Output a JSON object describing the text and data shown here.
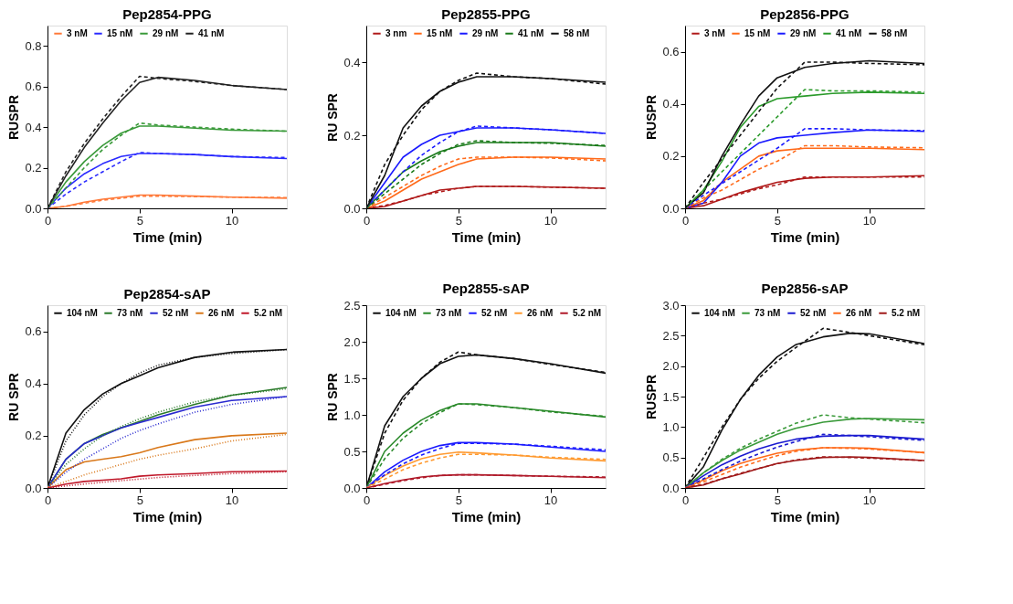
{
  "chart_data": [
    {
      "type": "line",
      "title": "Pep2854-PPG",
      "xlabel": "Time (min)",
      "ylabel": "RUSPR",
      "legend": "top",
      "x": [
        0,
        1,
        2,
        3,
        4,
        5,
        6,
        8,
        10,
        13
      ],
      "xlim": [
        0,
        13
      ],
      "xticks": [
        0,
        5,
        10
      ],
      "ylim": [
        0,
        0.9
      ],
      "yticks": [
        {
          "value": 0,
          "label": "0.0"
        },
        0.2,
        0.4,
        0.6,
        0.8
      ],
      "line_style": "solid",
      "series": [
        {
          "name": "3 nM",
          "color": "#ff7a3a",
          "values": [
            0,
            0.01,
            0.03,
            0.045,
            0.055,
            0.065,
            0.065,
            0.06,
            0.055,
            0.05
          ]
        },
        {
          "name": "15 nM",
          "color": "#2a2aff",
          "values": [
            0,
            0.1,
            0.17,
            0.22,
            0.255,
            0.27,
            0.27,
            0.265,
            0.255,
            0.245
          ]
        },
        {
          "name": "29 nM",
          "color": "#3a9a3a",
          "values": [
            0,
            0.13,
            0.23,
            0.31,
            0.37,
            0.405,
            0.405,
            0.395,
            0.385,
            0.38
          ]
        },
        {
          "name": "41 nM",
          "color": "#222222",
          "values": [
            0,
            0.16,
            0.3,
            0.42,
            0.53,
            0.62,
            0.645,
            0.63,
            0.605,
            0.585
          ]
        },
        {
          "color": "#ff7a3a",
          "line_style": "dashed",
          "values": [
            0,
            0.01,
            0.025,
            0.04,
            0.05,
            0.06,
            0.06,
            0.058,
            0.055,
            0.053
          ]
        },
        {
          "color": "#2a2aff",
          "line_style": "dashed",
          "values": [
            0,
            0.07,
            0.13,
            0.18,
            0.23,
            0.275,
            0.27,
            0.265,
            0.255,
            0.25
          ]
        },
        {
          "color": "#3a9a3a",
          "line_style": "dashed",
          "values": [
            0,
            0.1,
            0.2,
            0.29,
            0.36,
            0.42,
            0.41,
            0.4,
            0.39,
            0.38
          ]
        },
        {
          "color": "#222222",
          "line_style": "dashed",
          "values": [
            0,
            0.18,
            0.32,
            0.44,
            0.55,
            0.65,
            0.64,
            0.625,
            0.605,
            0.585
          ]
        }
      ]
    },
    {
      "type": "line",
      "title": "Pep2855-PPG",
      "xlabel": "Time (min)",
      "ylabel": "RU SPR",
      "legend": "top",
      "x": [
        0,
        1,
        2,
        3,
        4,
        5,
        6,
        8,
        10,
        13
      ],
      "xlim": [
        0,
        13
      ],
      "xticks": [
        0,
        5,
        10
      ],
      "ylim": [
        0,
        0.5
      ],
      "yticks": [
        {
          "value": 0,
          "label": "0.0"
        },
        0.2,
        0.4
      ],
      "line_style": "solid",
      "series": [
        {
          "name": "3 nm",
          "color": "#b01a1a",
          "values": [
            0,
            0.005,
            0.02,
            0.035,
            0.05,
            0.055,
            0.06,
            0.06,
            0.058,
            0.055
          ]
        },
        {
          "name": "15 nM",
          "color": "#ff6a1a",
          "values": [
            0,
            0.02,
            0.05,
            0.08,
            0.1,
            0.12,
            0.135,
            0.14,
            0.14,
            0.135
          ]
        },
        {
          "name": "29 nM",
          "color": "#1a1aff",
          "values": [
            0,
            0.07,
            0.14,
            0.175,
            0.2,
            0.21,
            0.22,
            0.22,
            0.215,
            0.205
          ]
        },
        {
          "name": "41 nM",
          "color": "#1a7a1a",
          "values": [
            0,
            0.05,
            0.1,
            0.13,
            0.155,
            0.17,
            0.18,
            0.18,
            0.18,
            0.17
          ]
        },
        {
          "name": "58 nM",
          "color": "#111111",
          "values": [
            0,
            0.09,
            0.22,
            0.28,
            0.32,
            0.345,
            0.36,
            0.36,
            0.355,
            0.345
          ]
        },
        {
          "color": "#b01a1a",
          "line_style": "dashed",
          "values": [
            0,
            0.008,
            0.02,
            0.035,
            0.045,
            0.055,
            0.06,
            0.06,
            0.058,
            0.055
          ]
        },
        {
          "color": "#ff6a1a",
          "line_style": "dashed",
          "values": [
            0,
            0.03,
            0.06,
            0.09,
            0.115,
            0.135,
            0.14,
            0.14,
            0.138,
            0.13
          ]
        },
        {
          "color": "#1a1aff",
          "line_style": "dashed",
          "values": [
            0,
            0.05,
            0.1,
            0.145,
            0.18,
            0.21,
            0.225,
            0.22,
            0.215,
            0.205
          ]
        },
        {
          "color": "#1a7a1a",
          "line_style": "dashed",
          "values": [
            0,
            0.04,
            0.08,
            0.12,
            0.15,
            0.175,
            0.185,
            0.18,
            0.178,
            0.172
          ]
        },
        {
          "color": "#111111",
          "line_style": "dashed",
          "values": [
            0,
            0.12,
            0.2,
            0.27,
            0.32,
            0.35,
            0.37,
            0.36,
            0.355,
            0.34
          ]
        }
      ]
    },
    {
      "type": "line",
      "title": "Pep2856-PPG",
      "xlabel": "Time (min)",
      "ylabel": "RUSPR",
      "legend": "top",
      "x": [
        0,
        1,
        2,
        3,
        4,
        5,
        6.5,
        8,
        10,
        13
      ],
      "xlim": [
        0,
        13
      ],
      "xticks": [
        0,
        5,
        10
      ],
      "ylim": [
        0,
        0.7
      ],
      "yticks": [
        {
          "value": 0,
          "label": "0.0"
        },
        0.2,
        0.4,
        0.6
      ],
      "line_style": "solid",
      "series": [
        {
          "name": "3 nM",
          "color": "#b01a1a",
          "values": [
            0,
            0.01,
            0.035,
            0.06,
            0.08,
            0.1,
            0.115,
            0.12,
            0.12,
            0.125
          ]
        },
        {
          "name": "15 nM",
          "color": "#ff6a1a",
          "values": [
            0,
            0.03,
            0.1,
            0.15,
            0.2,
            0.22,
            0.23,
            0.23,
            0.23,
            0.225
          ]
        },
        {
          "name": "29 nM",
          "color": "#1a1aff",
          "values": [
            0,
            0.02,
            0.1,
            0.2,
            0.25,
            0.27,
            0.28,
            0.29,
            0.3,
            0.295
          ]
        },
        {
          "name": "41 nM",
          "color": "#2a9a2a",
          "values": [
            0,
            0.07,
            0.18,
            0.31,
            0.39,
            0.42,
            0.43,
            0.44,
            0.445,
            0.44
          ]
        },
        {
          "name": "58 nM",
          "color": "#111111",
          "values": [
            0,
            0.06,
            0.2,
            0.32,
            0.43,
            0.5,
            0.54,
            0.555,
            0.565,
            0.555
          ]
        },
        {
          "color": "#b01a1a",
          "line_style": "dashed",
          "values": [
            0,
            0.02,
            0.035,
            0.055,
            0.075,
            0.09,
            0.12,
            0.12,
            0.12,
            0.12
          ]
        },
        {
          "color": "#ff6a1a",
          "line_style": "dashed",
          "values": [
            0,
            0.04,
            0.07,
            0.11,
            0.15,
            0.18,
            0.24,
            0.24,
            0.235,
            0.232
          ]
        },
        {
          "color": "#1a1aff",
          "line_style": "dashed",
          "values": [
            0,
            0.05,
            0.095,
            0.14,
            0.185,
            0.23,
            0.305,
            0.305,
            0.3,
            0.298
          ]
        },
        {
          "color": "#2a9a2a",
          "line_style": "dashed",
          "values": [
            0,
            0.07,
            0.14,
            0.21,
            0.28,
            0.35,
            0.455,
            0.45,
            0.45,
            0.445
          ]
        },
        {
          "color": "#111111",
          "line_style": "dashed",
          "values": [
            0,
            0.1,
            0.19,
            0.28,
            0.37,
            0.46,
            0.56,
            0.56,
            0.555,
            0.55
          ]
        }
      ]
    },
    {
      "type": "line",
      "title": "Pep2854-sAP",
      "xlabel": "Time (min)",
      "ylabel": "RU SPR",
      "legend": "top",
      "x": [
        0,
        1,
        2,
        3,
        4,
        5,
        6,
        8,
        10,
        13
      ],
      "xlim": [
        0,
        13
      ],
      "xticks": [
        0,
        5,
        10
      ],
      "ylim": [
        0,
        0.7
      ],
      "yticks": [
        {
          "value": 0,
          "label": "0.0"
        },
        0.2,
        0.4,
        0.6
      ],
      "line_style": "solid",
      "series": [
        {
          "name": "104 nM",
          "color": "#111111",
          "values": [
            0,
            0.21,
            0.3,
            0.36,
            0.4,
            0.43,
            0.46,
            0.5,
            0.52,
            0.53
          ]
        },
        {
          "name": "73 nM",
          "color": "#2a7a2a",
          "values": [
            0,
            0.11,
            0.17,
            0.205,
            0.23,
            0.255,
            0.28,
            0.32,
            0.355,
            0.385
          ]
        },
        {
          "name": "52 nM",
          "color": "#2a2ad0",
          "values": [
            0,
            0.11,
            0.17,
            0.2,
            0.23,
            0.25,
            0.27,
            0.31,
            0.335,
            0.35
          ]
        },
        {
          "name": "26 nM",
          "color": "#d9781a",
          "values": [
            0,
            0.07,
            0.1,
            0.11,
            0.12,
            0.135,
            0.155,
            0.185,
            0.2,
            0.21
          ]
        },
        {
          "name": "5.2 nM",
          "color": "#c0182a",
          "values": [
            0,
            0.015,
            0.025,
            0.03,
            0.035,
            0.045,
            0.05,
            0.055,
            0.062,
            0.065
          ]
        },
        {
          "color": "#111111",
          "line_style": "dotted",
          "values": [
            0,
            0.18,
            0.28,
            0.35,
            0.4,
            0.44,
            0.47,
            0.5,
            0.515,
            0.53
          ]
        },
        {
          "color": "#2a7a2a",
          "line_style": "dotted",
          "values": [
            0,
            0.09,
            0.15,
            0.2,
            0.235,
            0.265,
            0.29,
            0.33,
            0.355,
            0.38
          ]
        },
        {
          "color": "#2a2ad0",
          "line_style": "dotted",
          "values": [
            0,
            0.06,
            0.11,
            0.15,
            0.19,
            0.22,
            0.245,
            0.29,
            0.32,
            0.35
          ]
        },
        {
          "color": "#d9781a",
          "line_style": "dotted",
          "values": [
            0,
            0.025,
            0.05,
            0.07,
            0.09,
            0.11,
            0.125,
            0.15,
            0.18,
            0.205
          ]
        },
        {
          "color": "#c0182a",
          "line_style": "dotted",
          "values": [
            0,
            0.008,
            0.015,
            0.022,
            0.028,
            0.034,
            0.04,
            0.048,
            0.055,
            0.062
          ]
        }
      ]
    },
    {
      "type": "line",
      "title": "Pep2855-sAP",
      "xlabel": "Time (min)",
      "ylabel": "RU SPR",
      "legend": "top",
      "x": [
        0,
        1,
        2,
        3,
        4,
        5,
        6,
        8,
        10,
        13
      ],
      "xlim": [
        0,
        13
      ],
      "xticks": [
        0,
        5,
        10
      ],
      "ylim": [
        0,
        2.5
      ],
      "yticks": [
        {
          "value": 0,
          "label": "0.0"
        },
        0.5,
        {
          "value": 1,
          "label": "1.0"
        },
        1.5,
        {
          "value": 2,
          "label": "2.0"
        },
        2.5
      ],
      "line_style": "solid",
      "series": [
        {
          "name": "104 nM",
          "color": "#111111",
          "values": [
            0,
            0.85,
            1.25,
            1.5,
            1.7,
            1.8,
            1.82,
            1.77,
            1.7,
            1.57
          ]
        },
        {
          "name": "73 nM",
          "color": "#2a8a2a",
          "values": [
            0,
            0.5,
            0.75,
            0.93,
            1.06,
            1.15,
            1.15,
            1.1,
            1.05,
            0.97
          ]
        },
        {
          "name": "52 nM",
          "color": "#1a1aff",
          "values": [
            0,
            0.22,
            0.38,
            0.5,
            0.58,
            0.62,
            0.62,
            0.6,
            0.56,
            0.5
          ]
        },
        {
          "name": "26 nM",
          "color": "#ff9a30",
          "values": [
            0,
            0.17,
            0.3,
            0.4,
            0.46,
            0.49,
            0.48,
            0.45,
            0.41,
            0.37
          ]
        },
        {
          "name": "5.2 nM",
          "color": "#b01a2a",
          "values": [
            0,
            0.06,
            0.11,
            0.15,
            0.17,
            0.18,
            0.18,
            0.17,
            0.16,
            0.14
          ]
        },
        {
          "color": "#111111",
          "line_style": "dashed",
          "values": [
            0,
            0.75,
            1.2,
            1.5,
            1.72,
            1.86,
            1.82,
            1.77,
            1.69,
            1.58
          ]
        },
        {
          "color": "#2a8a2a",
          "line_style": "dashed",
          "values": [
            0,
            0.4,
            0.68,
            0.88,
            1.03,
            1.15,
            1.14,
            1.1,
            1.04,
            0.98
          ]
        },
        {
          "color": "#1a1aff",
          "line_style": "dashed",
          "values": [
            0,
            0.18,
            0.33,
            0.45,
            0.54,
            0.61,
            0.61,
            0.6,
            0.57,
            0.52
          ]
        },
        {
          "color": "#ff9a30",
          "line_style": "dashed",
          "values": [
            0,
            0.12,
            0.25,
            0.34,
            0.41,
            0.46,
            0.46,
            0.45,
            0.42,
            0.39
          ]
        },
        {
          "color": "#b01a2a",
          "line_style": "dashed",
          "values": [
            0,
            0.05,
            0.1,
            0.14,
            0.17,
            0.18,
            0.18,
            0.17,
            0.16,
            0.15
          ]
        }
      ]
    },
    {
      "type": "line",
      "title": "Pep2856-sAP",
      "xlabel": "Time (min)",
      "ylabel": "RUSPR",
      "legend": "top",
      "x": [
        0,
        1,
        2,
        3,
        4,
        5,
        6,
        7.5,
        9,
        10,
        13
      ],
      "xlim": [
        0,
        13
      ],
      "xticks": [
        0,
        5,
        10
      ],
      "ylim": [
        0,
        3
      ],
      "yticks": [
        {
          "value": 0,
          "label": "0.0"
        },
        0.5,
        {
          "value": 1,
          "label": "1.0"
        },
        1.5,
        {
          "value": 2,
          "label": "2.0"
        },
        2.5,
        {
          "value": 3,
          "label": "3.0"
        }
      ],
      "line_style": "solid",
      "series": [
        {
          "name": "104 nM",
          "color": "#111111",
          "values": [
            0,
            0.35,
            0.95,
            1.45,
            1.85,
            2.15,
            2.35,
            2.48,
            2.54,
            2.53,
            2.37
          ]
        },
        {
          "name": "73 nM",
          "color": "#3a9a3a",
          "values": [
            0,
            0.25,
            0.45,
            0.62,
            0.75,
            0.88,
            0.98,
            1.08,
            1.13,
            1.14,
            1.12
          ]
        },
        {
          "name": "52 nM",
          "color": "#1a1ad0",
          "values": [
            0,
            0.2,
            0.38,
            0.52,
            0.64,
            0.73,
            0.8,
            0.85,
            0.86,
            0.86,
            0.8
          ]
        },
        {
          "name": "26 nM",
          "color": "#ff6a1a",
          "values": [
            0,
            0.13,
            0.28,
            0.4,
            0.49,
            0.57,
            0.62,
            0.66,
            0.66,
            0.65,
            0.58
          ]
        },
        {
          "name": "5.2 nM",
          "color": "#a01a1a",
          "values": [
            0,
            0.05,
            0.15,
            0.23,
            0.32,
            0.4,
            0.45,
            0.5,
            0.51,
            0.5,
            0.45
          ]
        },
        {
          "color": "#111111",
          "line_style": "dashed",
          "values": [
            0,
            0.5,
            1.0,
            1.45,
            1.8,
            2.08,
            2.3,
            2.62,
            2.55,
            2.5,
            2.35
          ]
        },
        {
          "color": "#3a9a3a",
          "line_style": "dashed",
          "values": [
            0,
            0.25,
            0.47,
            0.65,
            0.8,
            0.93,
            1.06,
            1.2,
            1.15,
            1.13,
            1.07
          ]
        },
        {
          "color": "#1a1ad0",
          "line_style": "dashed",
          "values": [
            0,
            0.15,
            0.3,
            0.44,
            0.56,
            0.67,
            0.76,
            0.88,
            0.86,
            0.84,
            0.78
          ]
        },
        {
          "color": "#ff6a1a",
          "line_style": "dashed",
          "values": [
            0,
            0.1,
            0.22,
            0.34,
            0.44,
            0.53,
            0.6,
            0.66,
            0.65,
            0.64,
            0.58
          ]
        },
        {
          "color": "#a01a1a",
          "line_style": "dashed",
          "values": [
            0,
            0.06,
            0.15,
            0.24,
            0.32,
            0.4,
            0.46,
            0.51,
            0.5,
            0.49,
            0.45
          ]
        }
      ]
    }
  ]
}
